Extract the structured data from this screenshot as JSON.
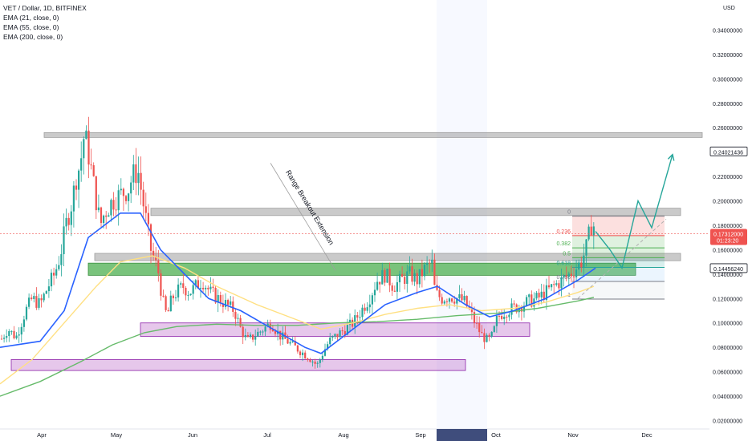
{
  "header": {
    "symbol_line": "VET / Dollar, 1D, BITFINEX",
    "indicators": [
      "EMA (21, close, 0)",
      "EMA (55, close, 0)",
      "EMA (200, close, 0)"
    ],
    "currency": "USD"
  },
  "annotation": "Range Breakout Extension",
  "colors": {
    "up": "#26a69a",
    "down": "#ef5350",
    "ema21": "#2962ff",
    "ema55": "#ffe082",
    "ema200": "#66bb6a",
    "gray_zone": "#9e9e9e",
    "green_zone": "#4caf50",
    "purple_zone": "#ab47bc",
    "projection": "#26a69a"
  },
  "chart_data": {
    "type": "candlestick",
    "x_axis": {
      "tick_labels": [
        "Apr",
        "May",
        "Jun",
        "Jul",
        "Aug",
        "Sep",
        "Oct",
        "Nov",
        "Dec"
      ]
    },
    "y_axis": {
      "range": [
        0.015,
        0.355
      ],
      "tick_labels": [
        "0.34000000",
        "0.32000000",
        "0.30000000",
        "0.28000000",
        "0.26000000",
        "0.24000000",
        "0.22000000",
        "0.20000000",
        "0.18000000",
        "0.16000000",
        "0.14000000",
        "0.12000000",
        "0.10000000",
        "0.08000000",
        "0.06000000",
        "0.04000000",
        "0.02000000"
      ],
      "tick_values": [
        0.34,
        0.32,
        0.3,
        0.28,
        0.26,
        0.24,
        0.22,
        0.2,
        0.18,
        0.16,
        0.14,
        0.12,
        0.1,
        0.08,
        0.06,
        0.04,
        0.02
      ]
    },
    "price_labels": [
      {
        "text": "0.24021436",
        "value": 0.24021436,
        "style": "outline"
      },
      {
        "text": "0.17312000",
        "value": 0.17312,
        "style": "red"
      },
      {
        "text": "01:23:20",
        "value": 0.1665,
        "style": "red-sub"
      },
      {
        "text": "0.14456240",
        "value": 0.1445624,
        "style": "outline"
      }
    ],
    "price_path": [
      [
        0,
        0.085
      ],
      [
        10,
        0.095
      ],
      [
        20,
        0.088
      ],
      [
        32,
        0.11
      ],
      [
        40,
        0.12
      ],
      [
        50,
        0.115
      ],
      [
        60,
        0.13
      ],
      [
        68,
        0.14
      ],
      [
        75,
        0.155
      ],
      [
        82,
        0.18
      ],
      [
        90,
        0.2
      ],
      [
        95,
        0.22
      ],
      [
        100,
        0.23
      ],
      [
        105,
        0.255
      ],
      [
        110,
        0.24
      ],
      [
        115,
        0.22
      ],
      [
        120,
        0.2
      ],
      [
        125,
        0.18
      ],
      [
        130,
        0.19
      ],
      [
        140,
        0.2
      ],
      [
        150,
        0.205
      ],
      [
        160,
        0.21
      ],
      [
        165,
        0.22
      ],
      [
        172,
        0.225
      ],
      [
        178,
        0.2
      ],
      [
        183,
        0.18
      ],
      [
        188,
        0.16
      ],
      [
        193,
        0.15
      ],
      [
        198,
        0.14
      ],
      [
        202,
        0.12
      ],
      [
        208,
        0.105
      ],
      [
        214,
        0.12
      ],
      [
        220,
        0.125
      ],
      [
        228,
        0.13
      ],
      [
        236,
        0.125
      ],
      [
        244,
        0.13
      ],
      [
        252,
        0.135
      ],
      [
        262,
        0.125
      ],
      [
        272,
        0.12
      ],
      [
        282,
        0.115
      ],
      [
        292,
        0.11
      ],
      [
        300,
        0.095
      ],
      [
        308,
        0.085
      ],
      [
        318,
        0.09
      ],
      [
        328,
        0.095
      ],
      [
        338,
        0.1
      ],
      [
        348,
        0.09
      ],
      [
        358,
        0.085
      ],
      [
        368,
        0.08
      ],
      [
        378,
        0.075
      ],
      [
        388,
        0.07
      ],
      [
        395,
        0.065
      ],
      [
        402,
        0.075
      ],
      [
        410,
        0.085
      ],
      [
        420,
        0.09
      ],
      [
        430,
        0.095
      ],
      [
        440,
        0.1
      ],
      [
        450,
        0.11
      ],
      [
        460,
        0.12
      ],
      [
        470,
        0.135
      ],
      [
        480,
        0.14
      ],
      [
        490,
        0.13
      ],
      [
        500,
        0.135
      ],
      [
        510,
        0.14
      ],
      [
        520,
        0.135
      ],
      [
        530,
        0.145
      ],
      [
        538,
        0.15
      ],
      [
        542,
        0.125
      ],
      [
        550,
        0.12
      ],
      [
        560,
        0.122
      ],
      [
        570,
        0.12
      ],
      [
        578,
        0.118
      ],
      [
        585,
        0.11
      ],
      [
        592,
        0.1
      ],
      [
        600,
        0.09
      ],
      [
        608,
        0.085
      ],
      [
        614,
        0.09
      ],
      [
        620,
        0.105
      ],
      [
        630,
        0.11
      ],
      [
        640,
        0.112
      ],
      [
        650,
        0.115
      ],
      [
        660,
        0.118
      ],
      [
        670,
        0.12
      ],
      [
        680,
        0.125
      ],
      [
        690,
        0.13
      ],
      [
        700,
        0.135
      ],
      [
        710,
        0.14
      ],
      [
        718,
        0.145
      ],
      [
        724,
        0.15
      ],
      [
        730,
        0.16
      ],
      [
        735,
        0.175
      ],
      [
        738,
        0.185
      ],
      [
        742,
        0.173
      ]
    ],
    "ema21_path": [
      [
        0,
        0.08
      ],
      [
        50,
        0.085
      ],
      [
        80,
        0.11
      ],
      [
        110,
        0.17
      ],
      [
        150,
        0.19
      ],
      [
        175,
        0.19
      ],
      [
        200,
        0.16
      ],
      [
        230,
        0.14
      ],
      [
        260,
        0.12
      ],
      [
        300,
        0.11
      ],
      [
        340,
        0.095
      ],
      [
        380,
        0.08
      ],
      [
        400,
        0.075
      ],
      [
        440,
        0.095
      ],
      [
        480,
        0.115
      ],
      [
        520,
        0.125
      ],
      [
        545,
        0.13
      ],
      [
        580,
        0.115
      ],
      [
        610,
        0.105
      ],
      [
        640,
        0.11
      ],
      [
        680,
        0.12
      ],
      [
        720,
        0.135
      ],
      [
        742,
        0.145
      ]
    ],
    "ema55_path": [
      [
        0,
        0.05
      ],
      [
        40,
        0.07
      ],
      [
        80,
        0.1
      ],
      [
        120,
        0.13
      ],
      [
        150,
        0.15
      ],
      [
        190,
        0.155
      ],
      [
        230,
        0.145
      ],
      [
        270,
        0.13
      ],
      [
        320,
        0.115
      ],
      [
        360,
        0.105
      ],
      [
        400,
        0.095
      ],
      [
        440,
        0.1
      ],
      [
        480,
        0.107
      ],
      [
        520,
        0.112
      ],
      [
        560,
        0.115
      ],
      [
        600,
        0.11
      ],
      [
        640,
        0.112
      ],
      [
        680,
        0.117
      ],
      [
        720,
        0.125
      ],
      [
        740,
        0.13
      ]
    ],
    "ema200_path": [
      [
        0,
        0.04
      ],
      [
        50,
        0.052
      ],
      [
        100,
        0.068
      ],
      [
        140,
        0.082
      ],
      [
        180,
        0.092
      ],
      [
        220,
        0.097
      ],
      [
        270,
        0.099
      ],
      [
        320,
        0.098
      ],
      [
        370,
        0.098
      ],
      [
        420,
        0.1
      ],
      [
        470,
        0.101
      ],
      [
        520,
        0.103
      ],
      [
        570,
        0.106
      ],
      [
        620,
        0.108
      ],
      [
        670,
        0.112
      ],
      [
        720,
        0.118
      ],
      [
        740,
        0.121
      ]
    ],
    "zones": [
      {
        "x1": 55,
        "x2": 875,
        "y_top": 0.256,
        "y_bot": 0.252,
        "kind": "gray"
      },
      {
        "x1": 188,
        "x2": 848,
        "y_top": 0.194,
        "y_bot": 0.188,
        "kind": "gray"
      },
      {
        "x1": 118,
        "x2": 848,
        "y_top": 0.157,
        "y_bot": 0.151,
        "kind": "gray"
      },
      {
        "x1": 110,
        "x2": 792,
        "y_top": 0.149,
        "y_bot": 0.139,
        "kind": "green"
      },
      {
        "x1": 175,
        "x2": 660,
        "y_top": 0.1,
        "y_bot": 0.089,
        "kind": "purple"
      },
      {
        "x1": 14,
        "x2": 580,
        "y_top": 0.07,
        "y_bot": 0.061,
        "kind": "purple"
      }
    ],
    "fib": {
      "x1": 713,
      "x2": 828,
      "levels": [
        {
          "label": "0",
          "value": 0.1875,
          "color": "#787b86"
        },
        {
          "label": "0.236",
          "value": 0.1715,
          "color": "#ef5350"
        },
        {
          "label": "0.382",
          "value": 0.1615,
          "color": "#4caf50"
        },
        {
          "label": "0.5",
          "value": 0.1535,
          "color": "#4caf50"
        },
        {
          "label": "0.618",
          "value": 0.1455,
          "color": "#26a69a"
        },
        {
          "label": "0.786",
          "value": 0.134,
          "color": "#787b86"
        },
        {
          "label": "1",
          "value": 0.1195,
          "color": "#787b86"
        }
      ]
    },
    "projection_path": [
      [
        742,
        0.175
      ],
      [
        760,
        0.16
      ],
      [
        775,
        0.145
      ],
      [
        795,
        0.2
      ],
      [
        812,
        0.178
      ],
      [
        838,
        0.238
      ]
    ],
    "dashed_trend": [
      [
        720,
        0.12
      ],
      [
        830,
        0.185
      ]
    ],
    "annotation_line": [
      [
        337,
        0.231
      ],
      [
        418,
        0.143
      ]
    ],
    "current_price_line": 0.17312,
    "highlight_x": [
      544,
      607
    ]
  }
}
